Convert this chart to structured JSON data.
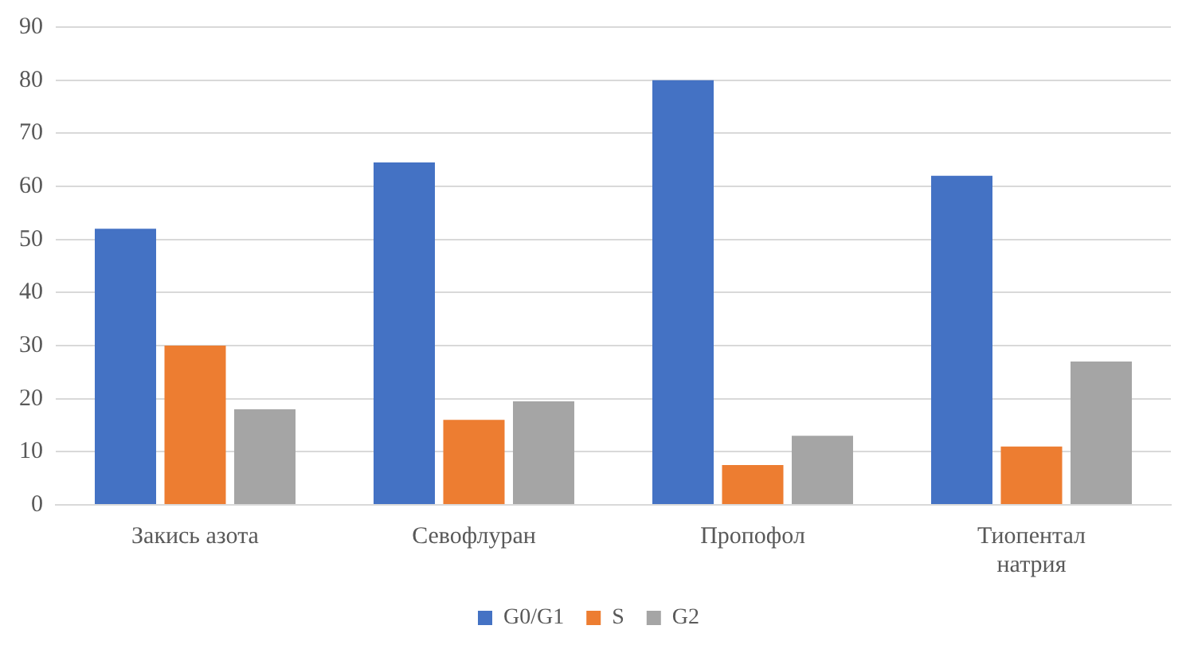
{
  "chart_data": {
    "type": "bar",
    "categories": [
      "Закись азота",
      "Севофлуран",
      "Пропофол",
      "Тиопентал натрия"
    ],
    "series": [
      {
        "name": "G0/G1",
        "color": "#4472c4",
        "values": [
          52,
          64.5,
          80,
          62
        ]
      },
      {
        "name": "S",
        "color": "#ed7d31",
        "values": [
          30,
          16,
          7.5,
          11
        ]
      },
      {
        "name": "G2",
        "color": "#a5a5a5",
        "values": [
          18,
          19.5,
          13,
          27
        ]
      }
    ],
    "ylim": [
      0,
      90
    ],
    "yticks": [
      0,
      10,
      20,
      30,
      40,
      50,
      60,
      70,
      80,
      90
    ],
    "grid": "y",
    "legend": "bottom"
  }
}
